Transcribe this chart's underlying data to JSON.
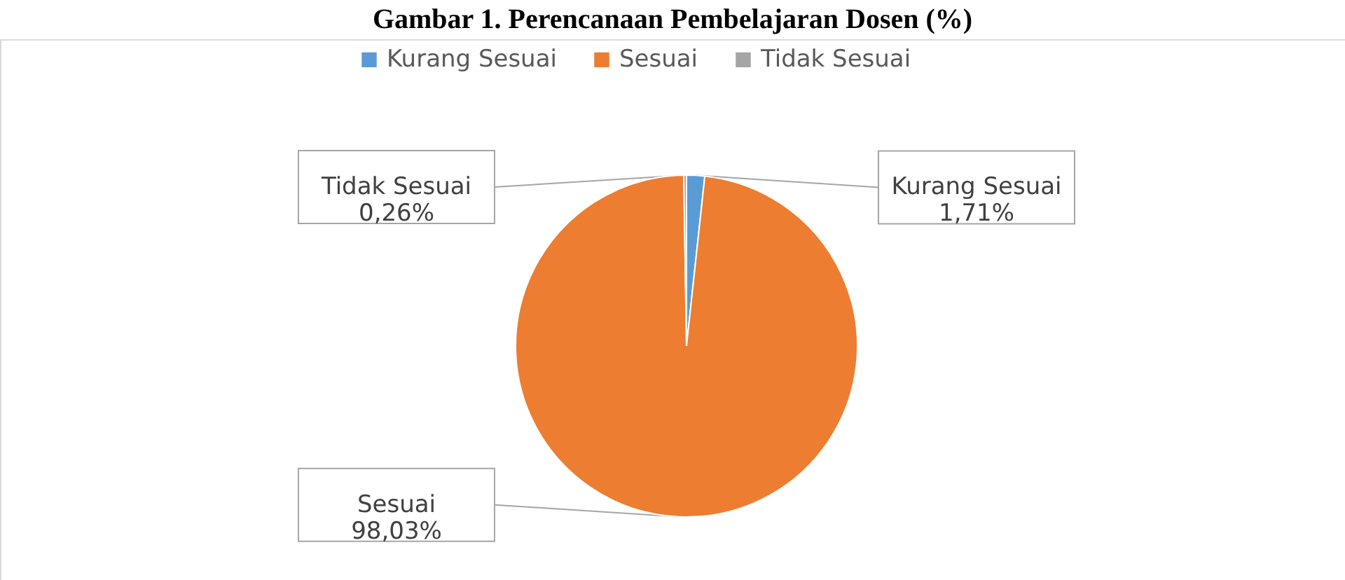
{
  "chart_data": {
    "type": "pie",
    "title": "Gambar 1. Perencanaan Pembelajaran Dosen (%)",
    "categories": [
      "Kurang Sesuai",
      "Sesuai",
      "Tidak Sesuai"
    ],
    "values": [
      1.71,
      98.03,
      0.26
    ],
    "colors": [
      "#5b9bd5",
      "#ed7d31",
      "#a5a5a5"
    ],
    "value_labels": [
      "1,71%",
      "98,03%",
      "0,26%"
    ],
    "legend": "top"
  }
}
